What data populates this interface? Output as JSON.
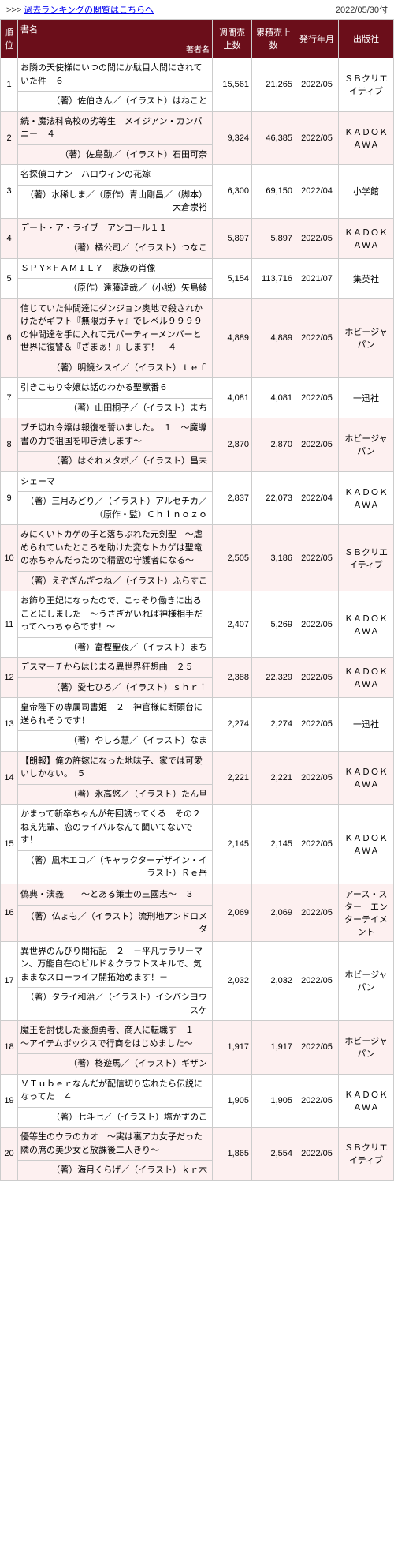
{
  "top": {
    "prefix": ">>> ",
    "link": "過去ランキングの閲覧はこちらへ",
    "date": "2022/05/30付"
  },
  "headers": {
    "rank": "順位",
    "title": "書名",
    "author": "著者名",
    "weekly": "週間売上数",
    "total": "累積売上数",
    "pubdate": "発行年月",
    "publisher": "出版社"
  },
  "rows": [
    {
      "rank": "1",
      "title": "お隣の天使様にいつの間にか駄目人間にされていた件　６",
      "author": "（著）佐伯さん／（イラスト）はねこと",
      "weekly": "15,561",
      "total": "21,265",
      "date": "2022/05",
      "publisher": "ＳＢクリエイティブ",
      "shade": "odd"
    },
    {
      "rank": "2",
      "title": "続・魔法科高校の劣等生　メイジアン・カンパニー　４",
      "author": "（著）佐島勤／（イラスト）石田可奈",
      "weekly": "9,324",
      "total": "46,385",
      "date": "2022/05",
      "publisher": "ＫＡＤＯＫＡＷＡ",
      "shade": "even"
    },
    {
      "rank": "3",
      "title": "名探偵コナン　ハロウィンの花嫁",
      "author": "（著）水稀しま／（原作）青山剛昌／（脚本）大倉崇裕",
      "weekly": "6,300",
      "total": "69,150",
      "date": "2022/04",
      "publisher": "小学館",
      "shade": "odd"
    },
    {
      "rank": "4",
      "title": "デート・ア・ライブ　アンコール１１",
      "author": "（著）橘公司／（イラスト）つなこ",
      "weekly": "5,897",
      "total": "5,897",
      "date": "2022/05",
      "publisher": "ＫＡＤＯＫＡＷＡ",
      "shade": "even"
    },
    {
      "rank": "5",
      "title": "ＳＰＹ×ＦＡＭＩＬＹ　家族の肖像",
      "author": "（原作）遠藤達哉／（小説）矢島綾",
      "weekly": "5,154",
      "total": "113,716",
      "date": "2021/07",
      "publisher": "集英社",
      "shade": "odd"
    },
    {
      "rank": "6",
      "title": "信じていた仲間達にダンジョン奥地で殺されかけたがギフト『無限ガチャ』でレベル９９９９の仲間達を手に入れて元パーティーメンバーと世界に復讐＆『ざまぁ！』します！　４",
      "author": "（著）明鏡シスイ／（イラスト）ｔｅｆ",
      "weekly": "4,889",
      "total": "4,889",
      "date": "2022/05",
      "publisher": "ホビージャパン",
      "shade": "even"
    },
    {
      "rank": "7",
      "title": "引きこもり令嬢は話のわかる聖獣番６",
      "author": "（著）山田桐子／（イラスト）まち",
      "weekly": "4,081",
      "total": "4,081",
      "date": "2022/05",
      "publisher": "一迅社",
      "shade": "odd"
    },
    {
      "rank": "8",
      "title": "ブチ切れ令嬢は報復を誓いました。　１　～魔導書の力で祖国を叩き潰します～",
      "author": "（著）はぐれメタボ／（イラスト）昌未",
      "weekly": "2,870",
      "total": "2,870",
      "date": "2022/05",
      "publisher": "ホビージャパン",
      "shade": "even"
    },
    {
      "rank": "9",
      "title": "シェーマ",
      "author": "（著）三月みどり／（イラスト）アルセチカ／（原作・監）Ｃｈｉｎｏｚｏ",
      "weekly": "2,837",
      "total": "22,073",
      "date": "2022/04",
      "publisher": "ＫＡＤＯＫＡＷＡ",
      "shade": "odd"
    },
    {
      "rank": "10",
      "title": "みにくいトカゲの子と落ちぶれた元剣聖　～虐められていたところを助けた変なトカゲは聖竜の赤ちゃんだったので精霊の守護者になる～",
      "author": "（著）えぞぎんぎつね／（イラスト）ふらすこ",
      "weekly": "2,505",
      "total": "3,186",
      "date": "2022/05",
      "publisher": "ＳＢクリエイティブ",
      "shade": "even"
    },
    {
      "rank": "11",
      "title": "お飾り王妃になったので、こっそり働きに出ることにしました　～うさぎがいれば神様相手だってへっちゃらです！～",
      "author": "（著）富樫聖夜／（イラスト）まち",
      "weekly": "2,407",
      "total": "5,269",
      "date": "2022/05",
      "publisher": "ＫＡＤＯＫＡＷＡ",
      "shade": "odd"
    },
    {
      "rank": "12",
      "title": "デスマーチからはじまる異世界狂想曲　２５",
      "author": "（著）愛七ひろ／（イラスト）ｓｈｒｉ",
      "weekly": "2,388",
      "total": "22,329",
      "date": "2022/05",
      "publisher": "ＫＡＤＯＫＡＷＡ",
      "shade": "even"
    },
    {
      "rank": "13",
      "title": "皇帝陛下の専属司書姫　２　神官様に断頭台に送られそうです！",
      "author": "（著）やしろ慧／（イラスト）なま",
      "weekly": "2,274",
      "total": "2,274",
      "date": "2022/05",
      "publisher": "一迅社",
      "shade": "odd"
    },
    {
      "rank": "14",
      "title": "【朗報】俺の許嫁になった地味子、家では可愛いしかない。　５",
      "author": "（著）氷高悠／（イラスト）たん旦",
      "weekly": "2,221",
      "total": "2,221",
      "date": "2022/05",
      "publisher": "ＫＡＤＯＫＡＷＡ",
      "shade": "even"
    },
    {
      "rank": "15",
      "title": "かまって新卒ちゃんが毎回誘ってくる　その２　ねえ先輩、恋のライバルなんて聞いてないです！",
      "author": "（著）凪木エコ／（キャラクターデザイン・イラスト）Ｒｅ岳",
      "weekly": "2,145",
      "total": "2,145",
      "date": "2022/05",
      "publisher": "ＫＡＤＯＫＡＷＡ",
      "shade": "odd"
    },
    {
      "rank": "16",
      "title": "偽典・演義　　～とある策士の三國志～　３",
      "author": "（著）仏ょも／（イラスト）流刑地アンドロメダ",
      "weekly": "2,069",
      "total": "2,069",
      "date": "2022/05",
      "publisher": "アース・スター　エンターテイメント",
      "shade": "even"
    },
    {
      "rank": "17",
      "title": "異世界のんびり開拓記　２　－平凡サラリーマン、万能自在のビルド＆クラフトスキルで、気ままなスローライフ開拓始めます！－",
      "author": "（著）タライ和治／（イラスト）イシバシヨウスケ",
      "weekly": "2,032",
      "total": "2,032",
      "date": "2022/05",
      "publisher": "ホビージャパン",
      "shade": "odd"
    },
    {
      "rank": "18",
      "title": "魔王を討伐した豪腕勇者、商人に転職す　１　～アイテムボックスで行商をはじめました～",
      "author": "（著）柊遊馬／（イラスト）ギザン",
      "weekly": "1,917",
      "total": "1,917",
      "date": "2022/05",
      "publisher": "ホビージャパン",
      "shade": "even"
    },
    {
      "rank": "19",
      "title": "ＶＴｕｂｅｒなんだが配信切り忘れたら伝説になってた　４",
      "author": "（著）七斗七／（イラスト）塩かずのこ",
      "weekly": "1,905",
      "total": "1,905",
      "date": "2022/05",
      "publisher": "ＫＡＤＯＫＡＷＡ",
      "shade": "odd"
    },
    {
      "rank": "20",
      "title": "優等生のウラのカオ　～実は裏アカ女子だった隣の席の美少女と放課後二人きり～",
      "author": "（著）海月くらげ／（イラスト）ｋｒ木",
      "weekly": "1,865",
      "total": "2,554",
      "date": "2022/05",
      "publisher": "ＳＢクリエイティブ",
      "shade": "even"
    }
  ]
}
